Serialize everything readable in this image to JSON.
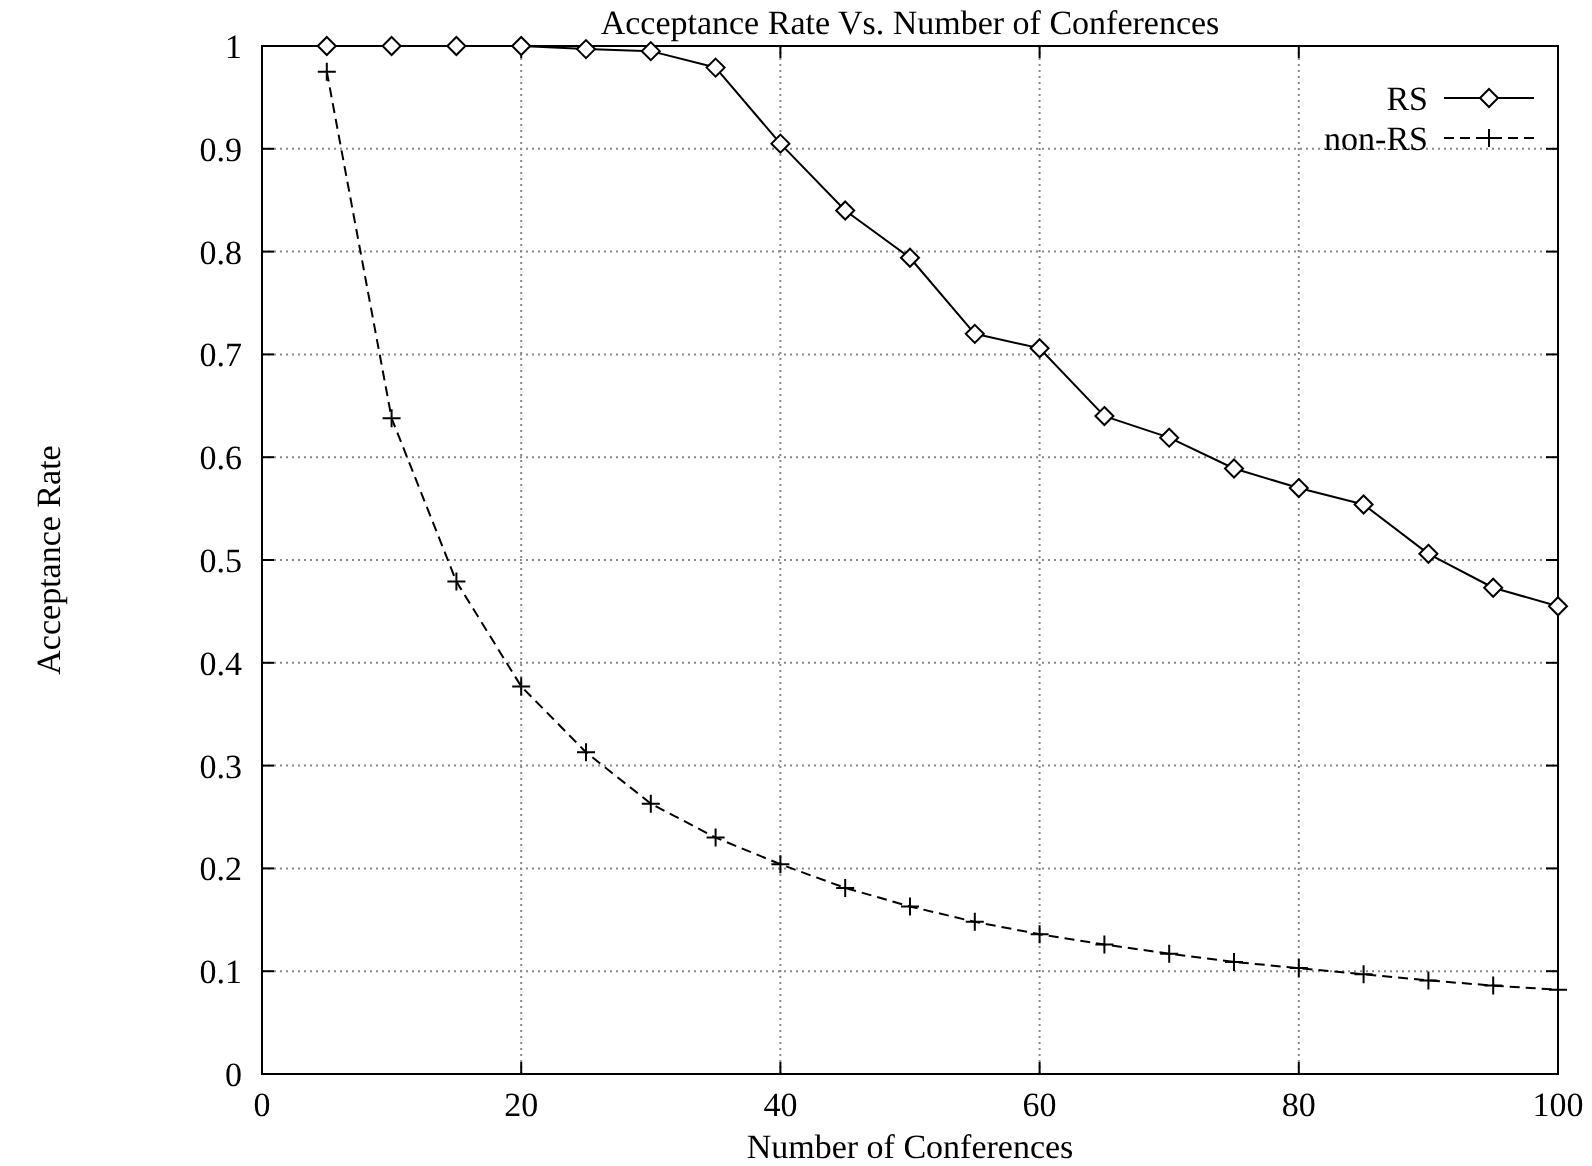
{
  "chart_data": {
    "type": "line",
    "title": "Acceptance Rate Vs. Number of Conferences",
    "xlabel": "Number of Conferences",
    "ylabel": "Acceptance Rate",
    "x": [
      5,
      10,
      15,
      20,
      25,
      30,
      35,
      40,
      45,
      50,
      55,
      60,
      65,
      70,
      75,
      80,
      85,
      90,
      95,
      100
    ],
    "series": [
      {
        "name": "RS",
        "color": "#000000",
        "marker": "diamond",
        "line_style": "solid",
        "values": [
          1,
          1,
          1,
          1,
          0.997,
          0.995,
          0.979,
          0.905,
          0.84,
          0.794,
          0.72,
          0.706,
          0.64,
          0.619,
          0.589,
          0.57,
          0.554,
          0.506,
          0.473,
          0.455
        ]
      },
      {
        "name": "non-RS",
        "color": "#000000",
        "marker": "cross",
        "line_style": "dashed",
        "values": [
          0.975,
          0.638,
          0.479,
          0.377,
          0.313,
          0.263,
          0.23,
          0.204,
          0.181,
          0.163,
          0.148,
          0.136,
          0.126,
          0.117,
          0.109,
          0.103,
          0.097,
          0.091,
          0.086,
          0.082
        ]
      }
    ],
    "xlim": [
      0,
      100
    ],
    "xticks": [
      0,
      20,
      40,
      60,
      80,
      100
    ],
    "ylim": [
      0,
      1
    ],
    "yticks": [
      0,
      0.1,
      0.2,
      0.3,
      0.4,
      0.5,
      0.6,
      0.7,
      0.8,
      0.9,
      1
    ],
    "grid": true,
    "legend": "top right"
  }
}
